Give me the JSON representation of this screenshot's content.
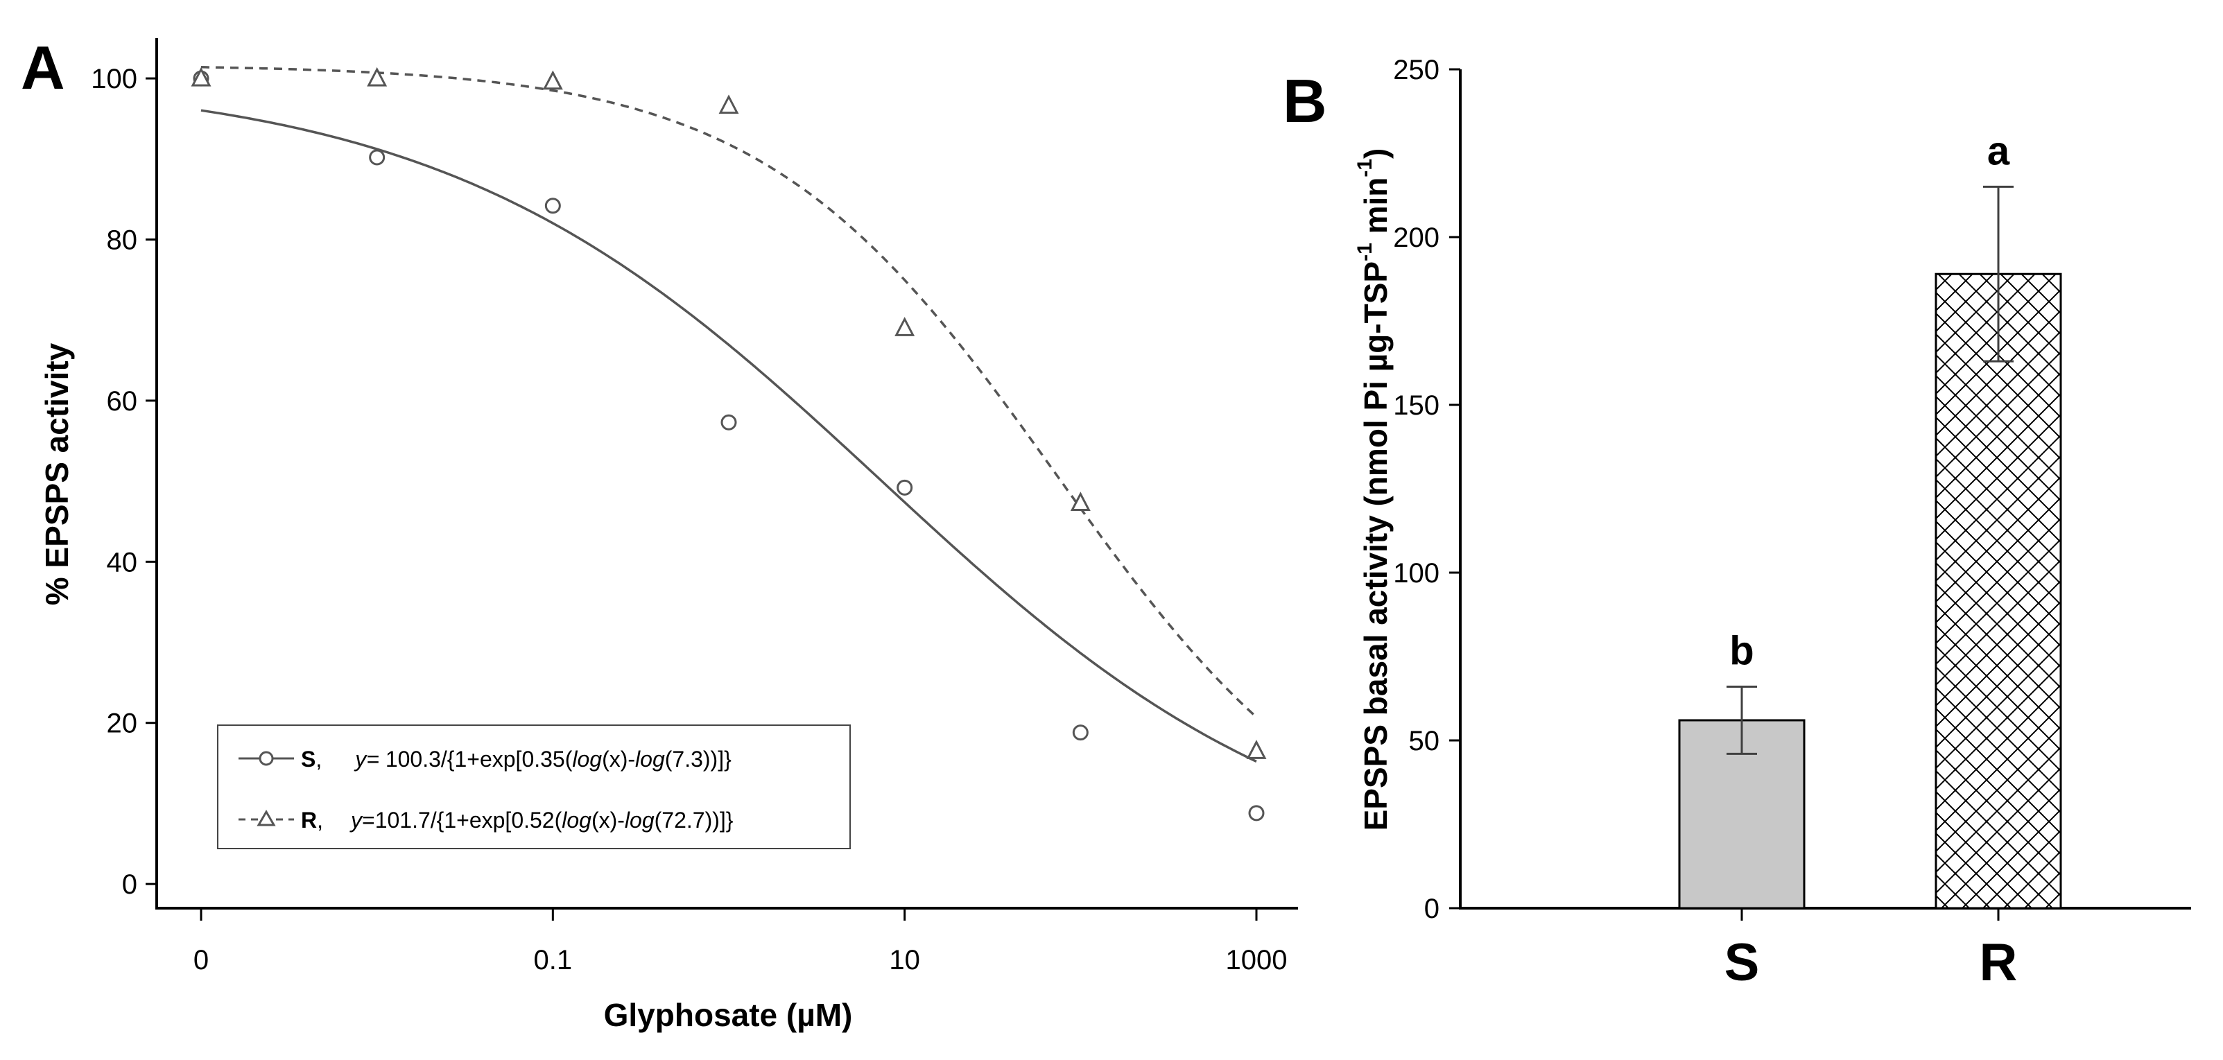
{
  "colors": {
    "axis": "#000000",
    "curve": "#555555",
    "bar_S_fill": "#c8c8c8",
    "hatch": "#000000",
    "error_bar": "#404040"
  },
  "chart_data": [
    {
      "type": "scatter",
      "panel": "A",
      "title": "",
      "xlabel": "Glyphosate (µM)",
      "ylabel": "% EPSPS activity",
      "xscale": "log",
      "x_tick_values": [
        0.001,
        0.1,
        10,
        1000
      ],
      "x_tick_labels": [
        "0",
        "0.1",
        "10",
        "1000"
      ],
      "ylim": [
        -3,
        105
      ],
      "y_ticks": [
        0,
        20,
        40,
        60,
        80,
        100
      ],
      "grid": false,
      "legend_position": "bottom-left",
      "series": [
        {
          "name": "S",
          "marker": "circle",
          "line_style": "solid",
          "equation": "y= 100.3/{1+exp[0.35(log(x)-log(7.3))]}",
          "fit": {
            "top": 100.3,
            "b": 0.35,
            "ed50": 7.3
          },
          "x": [
            0.001,
            0.01,
            0.1,
            1,
            10,
            100,
            1000
          ],
          "y": [
            100,
            90.2,
            84.2,
            57.3,
            49.2,
            18.8,
            8.8
          ]
        },
        {
          "name": "R",
          "marker": "triangle",
          "line_style": "dashed",
          "equation": "y=101.7/{1+exp[0.52(log(x)-log(72.7))]}",
          "fit": {
            "top": 101.7,
            "b": 0.52,
            "ed50": 72.7
          },
          "x": [
            0.001,
            0.01,
            0.1,
            1,
            10,
            100,
            1000
          ],
          "y": [
            100,
            100,
            99.6,
            96.6,
            69,
            47.3,
            16.5
          ]
        }
      ]
    },
    {
      "type": "bar",
      "panel": "B",
      "title": "",
      "xlabel": "",
      "ylabel": "EPSPS basal activity (nmol Pi µg-TSP-1 min-1)",
      "ylim": [
        0,
        250
      ],
      "y_ticks": [
        0,
        50,
        100,
        150,
        200,
        250
      ],
      "grid": false,
      "categories": [
        "S",
        "R"
      ],
      "values": [
        56,
        189
      ],
      "errors": [
        10,
        26
      ],
      "significance_letters": [
        "b",
        "a"
      ],
      "fills": [
        "solid-gray",
        "crosshatch"
      ]
    }
  ],
  "labels": {
    "panelA": "A",
    "panelB": "B",
    "legendS_name": "S",
    "legendR_name": "R",
    "legendS_eq_pre": "y=",
    "legendS_eq_mid1": " 100.3/{1+exp[0.35(",
    "legendS_log1": "log",
    "legendS_eq_mid2": "(x)-",
    "legendS_log2": "log",
    "legendS_eq_end": "(7.3))]}",
    "legendR_eq_pre": "y",
    "legendR_eq_mid1": "=101.7/{1+exp[0.52(",
    "legendR_log1": "log",
    "legendR_eq_mid2": "(x)-",
    "legendR_log2": "log",
    "legendR_eq_end": "(72.7))]}",
    "ylabelB_main": "EPSPS basal activity (nmol Pi µg-TSP",
    "ylabelB_sup1": "-1",
    "ylabelB_mid": " min",
    "ylabelB_sup2": "-1",
    "ylabelB_close": ")"
  }
}
